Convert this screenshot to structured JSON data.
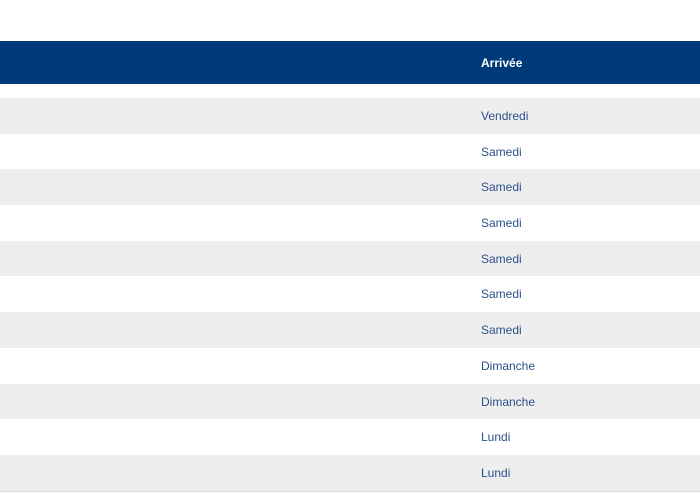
{
  "table": {
    "header": "Arrivée",
    "rows": [
      "Vendredi",
      "Samedi",
      "Samedi",
      "Samedi",
      "Samedi",
      "Samedi",
      "Samedi",
      "Dimanche",
      "Dimanche",
      "Lundi",
      "Lundi"
    ]
  },
  "colors": {
    "header_bg": "#003a78",
    "text": "#2a5189",
    "stripe": "#eeeeee"
  }
}
